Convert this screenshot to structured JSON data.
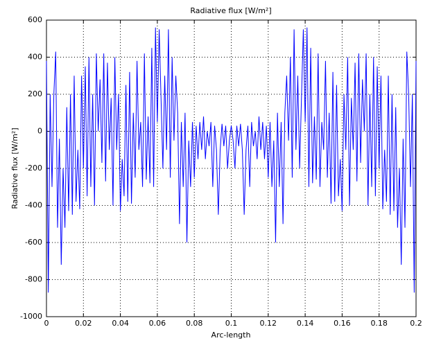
{
  "chart_data": {
    "type": "line",
    "title": "Radiative flux [W/m²]",
    "xlabel": "Arc-length",
    "ylabel": "Radiative flux [W/m²]",
    "xlim": [
      0,
      0.2
    ],
    "ylim": [
      -1000,
      600
    ],
    "xticks": [
      0,
      0.02,
      0.04,
      0.06,
      0.08,
      0.1,
      0.12,
      0.14,
      0.16,
      0.18,
      0.2
    ],
    "yticks": [
      -1000,
      -800,
      -600,
      -400,
      -200,
      0,
      200,
      400,
      600
    ],
    "grid": true,
    "x": [
      0,
      0.001,
      0.002,
      0.003,
      0.004,
      0.005,
      0.006,
      0.007,
      0.008,
      0.009,
      0.01,
      0.011,
      0.012,
      0.013,
      0.014,
      0.015,
      0.016,
      0.017,
      0.018,
      0.019,
      0.02,
      0.021,
      0.022,
      0.023,
      0.024,
      0.025,
      0.026,
      0.027,
      0.028,
      0.029,
      0.03,
      0.031,
      0.032,
      0.033,
      0.034,
      0.035,
      0.036,
      0.037,
      0.038,
      0.039,
      0.04,
      0.041,
      0.042,
      0.043,
      0.044,
      0.045,
      0.046,
      0.047,
      0.048,
      0.049,
      0.05,
      0.051,
      0.052,
      0.053,
      0.054,
      0.055,
      0.056,
      0.057,
      0.058,
      0.059,
      0.06,
      0.061,
      0.062,
      0.063,
      0.064,
      0.065,
      0.066,
      0.067,
      0.068,
      0.069,
      0.07,
      0.071,
      0.072,
      0.073,
      0.074,
      0.075,
      0.076,
      0.077,
      0.078,
      0.079,
      0.08,
      0.081,
      0.082,
      0.083,
      0.084,
      0.085,
      0.086,
      0.087,
      0.088,
      0.089,
      0.09,
      0.091,
      0.092,
      0.093,
      0.094,
      0.095,
      0.096,
      0.097,
      0.098,
      0.099,
      0.1,
      0.101,
      0.102,
      0.103,
      0.104,
      0.105,
      0.106,
      0.107,
      0.108,
      0.109,
      0.11,
      0.111,
      0.112,
      0.113,
      0.114,
      0.115,
      0.116,
      0.117,
      0.118,
      0.119,
      0.12,
      0.121,
      0.122,
      0.123,
      0.124,
      0.125,
      0.126,
      0.127,
      0.128,
      0.129,
      0.13,
      0.131,
      0.132,
      0.133,
      0.134,
      0.135,
      0.136,
      0.137,
      0.138,
      0.139,
      0.14,
      0.141,
      0.142,
      0.143,
      0.144,
      0.145,
      0.146,
      0.147,
      0.148,
      0.149,
      0.15,
      0.151,
      0.152,
      0.153,
      0.154,
      0.155,
      0.156,
      0.157,
      0.158,
      0.159,
      0.16,
      0.161,
      0.162,
      0.163,
      0.164,
      0.165,
      0.166,
      0.167,
      0.168,
      0.169,
      0.17,
      0.171,
      0.172,
      0.173,
      0.174,
      0.175,
      0.176,
      0.177,
      0.178,
      0.179,
      0.18,
      0.181,
      0.182,
      0.183,
      0.184,
      0.185,
      0.186,
      0.187,
      0.188,
      0.189,
      0.19,
      0.191,
      0.192,
      0.193,
      0.194,
      0.195,
      0.196,
      0.197,
      0.198,
      0.199,
      0.2
    ],
    "series": [
      {
        "color": "#0000ff",
        "values": [
          380,
          -870,
          200,
          -300,
          200,
          430,
          -520,
          -40,
          -720,
          -200,
          -520,
          130,
          -430,
          200,
          -450,
          300,
          -380,
          -100,
          -420,
          300,
          -200,
          350,
          -350,
          400,
          -300,
          200,
          -400,
          420,
          0,
          280,
          -170,
          420,
          -270,
          370,
          -100,
          180,
          -400,
          400,
          -100,
          200,
          -430,
          -150,
          -350,
          250,
          -380,
          320,
          -390,
          100,
          -250,
          380,
          -100,
          50,
          -300,
          420,
          -260,
          80,
          -280,
          450,
          -300,
          560,
          50,
          550,
          180,
          -200,
          300,
          -100,
          550,
          -250,
          400,
          -50,
          300,
          100,
          -500,
          50,
          -300,
          100,
          -600,
          -50,
          -300,
          50,
          -250,
          30,
          -150,
          50,
          -100,
          80,
          -150,
          0,
          -80,
          50,
          -300,
          30,
          -100,
          -450,
          -100,
          40,
          -80,
          30,
          -200,
          -50,
          30,
          -50,
          -200,
          30,
          -80,
          40,
          -100,
          -450,
          -100,
          30,
          -300,
          50,
          -80,
          0,
          -150,
          80,
          -100,
          50,
          -150,
          30,
          -250,
          50,
          -300,
          -50,
          -600,
          100,
          -300,
          50,
          -500,
          100,
          300,
          -50,
          400,
          -250,
          550,
          -100,
          300,
          -200,
          180,
          550,
          50,
          560,
          -300,
          450,
          -280,
          80,
          -260,
          420,
          -300,
          50,
          -100,
          380,
          -250,
          100,
          -390,
          320,
          -380,
          250,
          -350,
          -150,
          -430,
          200,
          -100,
          400,
          -400,
          180,
          -100,
          370,
          -270,
          420,
          -170,
          280,
          0,
          420,
          -400,
          200,
          -300,
          400,
          -350,
          350,
          -200,
          300,
          -420,
          -100,
          -380,
          300,
          -450,
          200,
          -430,
          130,
          -520,
          -200,
          -720,
          -40,
          -520,
          430,
          200,
          -300,
          200,
          -870,
          380
        ]
      }
    ]
  }
}
